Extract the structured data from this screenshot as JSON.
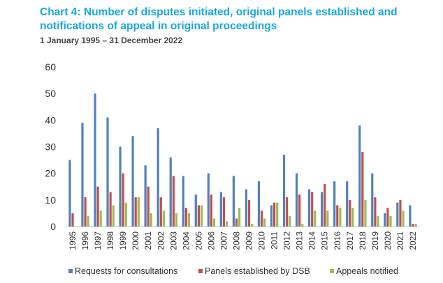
{
  "chart_data": {
    "type": "bar",
    "title": "Chart 4: Number of disputes initiated, original panels established and notifications of appeal in original proceedings",
    "subtitle": "1 January 1995 – 31 December 2022",
    "xlabel": "",
    "ylabel": "",
    "ylim": [
      0,
      60
    ],
    "yticks": [
      "0",
      "10",
      "20",
      "30",
      "40",
      "50",
      "60"
    ],
    "grid": false,
    "legend_position": "bottom",
    "categories": [
      "1995",
      "1996",
      "1997",
      "1998",
      "1999",
      "2000",
      "2001",
      "2002",
      "2003",
      "2004",
      "2005",
      "2006",
      "2007",
      "2008",
      "2009",
      "2010",
      "2011",
      "2012",
      "2013",
      "2014",
      "2015",
      "2016",
      "2017",
      "2018",
      "2019",
      "2020",
      "2021",
      "2022"
    ],
    "series": [
      {
        "name": "Requests for consultations",
        "color": "#4f81bd",
        "values": [
          25,
          39,
          50,
          41,
          30,
          34,
          23,
          37,
          26,
          19,
          12,
          20,
          13,
          19,
          14,
          17,
          8,
          27,
          20,
          14,
          13,
          17,
          17,
          38,
          20,
          5,
          9,
          8
        ]
      },
      {
        "name": "Panels established by DSB",
        "color": "#c0504d",
        "values": [
          5,
          11,
          15,
          13,
          20,
          11,
          15,
          11,
          19,
          7,
          8,
          12,
          11,
          3,
          10,
          6,
          9,
          11,
          12,
          13,
          16,
          8,
          10,
          28,
          11,
          7,
          10,
          1
        ]
      },
      {
        "name": "Appeals notified",
        "color": "#9bbb59",
        "values": [
          0,
          4,
          6,
          8,
          9,
          11,
          5,
          6,
          5,
          5,
          8,
          3,
          2,
          7,
          1,
          3,
          9,
          4,
          1,
          6,
          6,
          7,
          7,
          10,
          4,
          4,
          6,
          1
        ]
      }
    ]
  }
}
